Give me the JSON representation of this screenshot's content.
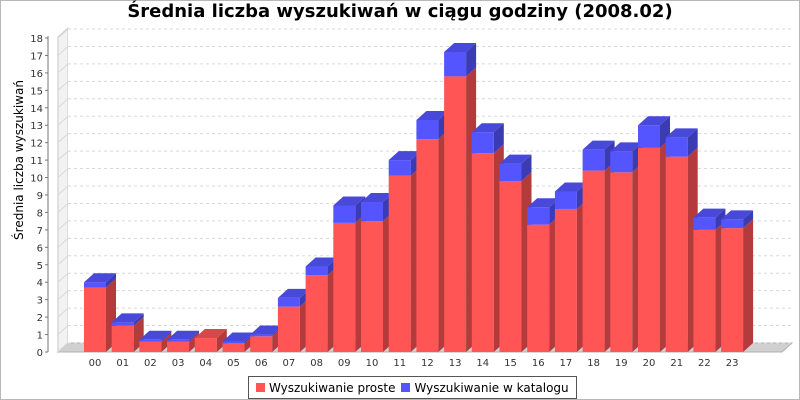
{
  "chart_data": {
    "type": "bar",
    "title": "Średnia liczba wyszukiwań w ciągu godziny (2008.02)",
    "xlabel": "",
    "ylabel": "Średnia liczba wyszukiwań",
    "ylim": [
      0,
      18
    ],
    "yticks": [
      "0",
      "1",
      "2",
      "3",
      "4",
      "5",
      "6",
      "7",
      "8",
      "9",
      "10",
      "11",
      "12",
      "13",
      "14",
      "15",
      "16",
      "17",
      "18"
    ],
    "categories": [
      "00",
      "01",
      "02",
      "03",
      "04",
      "05",
      "06",
      "07",
      "08",
      "09",
      "10",
      "11",
      "12",
      "13",
      "14",
      "15",
      "16",
      "17",
      "18",
      "19",
      "20",
      "21",
      "22",
      "23"
    ],
    "stacked": true,
    "grid": true,
    "legend_position": "bottom",
    "series": [
      {
        "name": "Wyszukiwanie proste",
        "color": "#ff5555",
        "values": [
          3.7,
          1.5,
          0.6,
          0.6,
          0.8,
          0.5,
          0.9,
          2.6,
          4.4,
          7.4,
          7.5,
          10.1,
          12.2,
          15.8,
          11.4,
          9.8,
          7.3,
          8.2,
          10.4,
          10.3,
          11.7,
          11.2,
          7.0,
          7.1
        ]
      },
      {
        "name": "Wyszukiwanie w katalogu",
        "color": "#5555ff",
        "values": [
          0.3,
          0.2,
          0.1,
          0.1,
          0.0,
          0.1,
          0.1,
          0.5,
          0.5,
          1.0,
          1.1,
          0.9,
          1.1,
          1.4,
          1.2,
          1.0,
          1.0,
          1.0,
          1.2,
          1.2,
          1.3,
          1.1,
          0.7,
          0.5
        ]
      }
    ]
  }
}
